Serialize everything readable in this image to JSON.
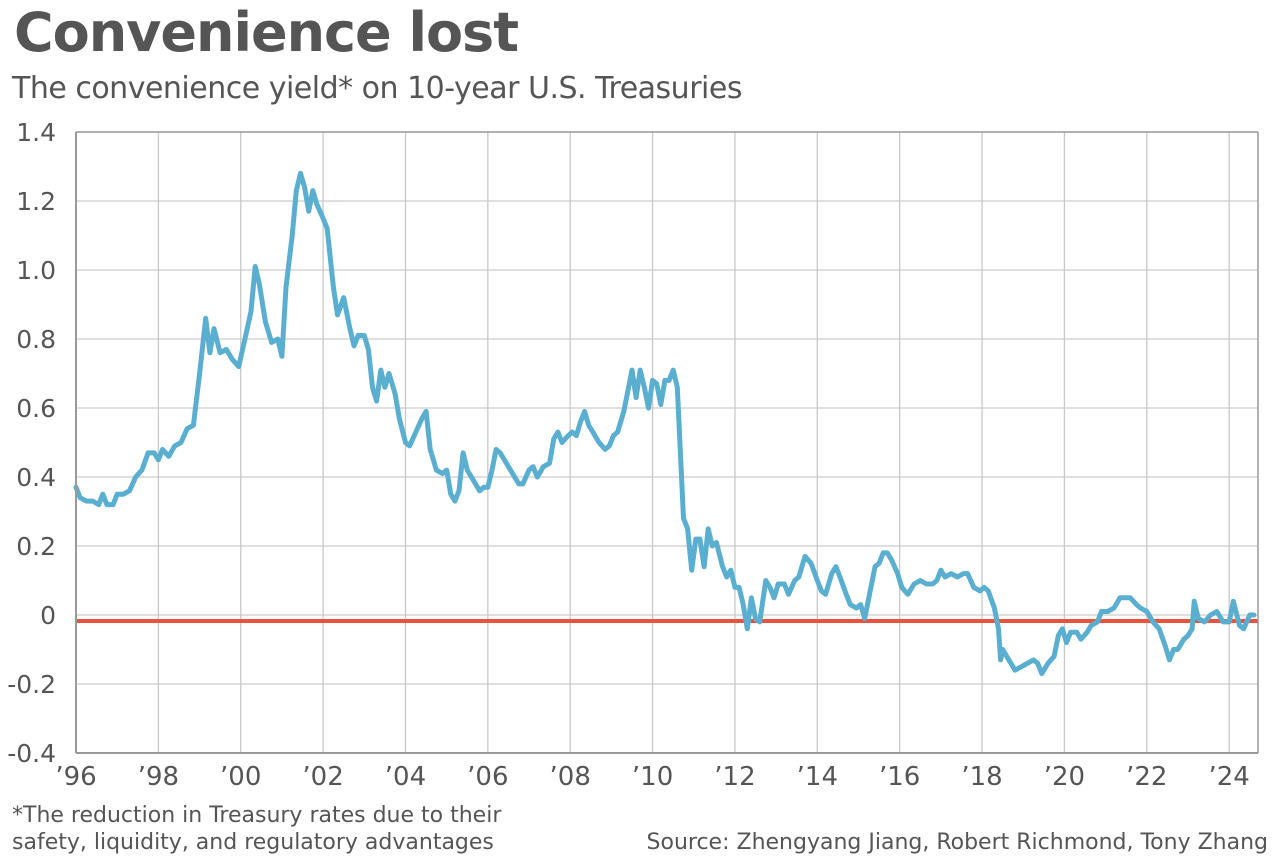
{
  "chart_data": {
    "type": "line",
    "title": "Convenience lost",
    "subtitle": "The convenience yield* on 10-year U.S. Treasuries",
    "xlabel": "",
    "ylabel": "",
    "xlim": [
      1996,
      2024.7
    ],
    "ylim": [
      -0.4,
      1.4
    ],
    "yticks": [
      1.4,
      1.2,
      1.0,
      0.8,
      0.6,
      0.4,
      0.2,
      0,
      -0.2,
      -0.4
    ],
    "ytick_labels": [
      "1.4",
      "1.2",
      "1.0",
      "0.8",
      "0.6",
      "0.4",
      "0.2",
      "0",
      "-0.2",
      "-0.4"
    ],
    "xticks": [
      1996,
      1998,
      2000,
      2002,
      2004,
      2006,
      2008,
      2010,
      2012,
      2014,
      2016,
      2018,
      2020,
      2022,
      2024
    ],
    "xtick_labels": [
      "’96",
      "’98",
      "’00",
      "’02",
      "’04",
      "’06",
      "’08",
      "’10",
      "’12",
      "’14",
      "’16",
      "’18",
      "’20",
      "’22",
      "’24"
    ],
    "grid": true,
    "reference_line": {
      "value": 0,
      "color": "#e8533f"
    },
    "series": [
      {
        "name": "Convenience yield",
        "color": "#5aafd1",
        "points": [
          [
            1996.0,
            0.37
          ],
          [
            1996.1,
            0.34
          ],
          [
            1996.25,
            0.33
          ],
          [
            1996.4,
            0.33
          ],
          [
            1996.55,
            0.32
          ],
          [
            1996.65,
            0.35
          ],
          [
            1996.75,
            0.32
          ],
          [
            1996.9,
            0.32
          ],
          [
            1997.0,
            0.35
          ],
          [
            1997.15,
            0.35
          ],
          [
            1997.3,
            0.36
          ],
          [
            1997.45,
            0.4
          ],
          [
            1997.6,
            0.42
          ],
          [
            1997.75,
            0.47
          ],
          [
            1997.9,
            0.47
          ],
          [
            1998.0,
            0.45
          ],
          [
            1998.1,
            0.48
          ],
          [
            1998.25,
            0.46
          ],
          [
            1998.4,
            0.49
          ],
          [
            1998.55,
            0.5
          ],
          [
            1998.7,
            0.54
          ],
          [
            1998.85,
            0.55
          ],
          [
            1999.0,
            0.7
          ],
          [
            1999.15,
            0.86
          ],
          [
            1999.25,
            0.76
          ],
          [
            1999.35,
            0.83
          ],
          [
            1999.5,
            0.76
          ],
          [
            1999.65,
            0.77
          ],
          [
            1999.8,
            0.74
          ],
          [
            1999.95,
            0.72
          ],
          [
            2000.1,
            0.8
          ],
          [
            2000.25,
            0.88
          ],
          [
            2000.35,
            1.01
          ],
          [
            2000.45,
            0.96
          ],
          [
            2000.6,
            0.85
          ],
          [
            2000.75,
            0.79
          ],
          [
            2000.9,
            0.8
          ],
          [
            2001.0,
            0.75
          ],
          [
            2001.1,
            0.95
          ],
          [
            2001.25,
            1.1
          ],
          [
            2001.35,
            1.23
          ],
          [
            2001.45,
            1.28
          ],
          [
            2001.55,
            1.24
          ],
          [
            2001.65,
            1.17
          ],
          [
            2001.75,
            1.23
          ],
          [
            2001.85,
            1.19
          ],
          [
            2002.0,
            1.15
          ],
          [
            2002.1,
            1.12
          ],
          [
            2002.25,
            0.95
          ],
          [
            2002.35,
            0.87
          ],
          [
            2002.5,
            0.92
          ],
          [
            2002.65,
            0.83
          ],
          [
            2002.75,
            0.78
          ],
          [
            2002.85,
            0.81
          ],
          [
            2003.0,
            0.81
          ],
          [
            2003.1,
            0.77
          ],
          [
            2003.2,
            0.66
          ],
          [
            2003.3,
            0.62
          ],
          [
            2003.4,
            0.71
          ],
          [
            2003.5,
            0.66
          ],
          [
            2003.6,
            0.7
          ],
          [
            2003.75,
            0.64
          ],
          [
            2003.85,
            0.57
          ],
          [
            2004.0,
            0.5
          ],
          [
            2004.1,
            0.49
          ],
          [
            2004.25,
            0.53
          ],
          [
            2004.4,
            0.57
          ],
          [
            2004.5,
            0.59
          ],
          [
            2004.6,
            0.48
          ],
          [
            2004.75,
            0.42
          ],
          [
            2004.9,
            0.41
          ],
          [
            2005.0,
            0.42
          ],
          [
            2005.1,
            0.35
          ],
          [
            2005.2,
            0.33
          ],
          [
            2005.3,
            0.36
          ],
          [
            2005.4,
            0.47
          ],
          [
            2005.5,
            0.42
          ],
          [
            2005.65,
            0.39
          ],
          [
            2005.8,
            0.36
          ],
          [
            2005.9,
            0.37
          ],
          [
            2006.0,
            0.37
          ],
          [
            2006.1,
            0.42
          ],
          [
            2006.2,
            0.48
          ],
          [
            2006.3,
            0.47
          ],
          [
            2006.45,
            0.44
          ],
          [
            2006.6,
            0.41
          ],
          [
            2006.75,
            0.38
          ],
          [
            2006.85,
            0.38
          ],
          [
            2007.0,
            0.42
          ],
          [
            2007.1,
            0.43
          ],
          [
            2007.2,
            0.4
          ],
          [
            2007.35,
            0.43
          ],
          [
            2007.5,
            0.44
          ],
          [
            2007.6,
            0.51
          ],
          [
            2007.7,
            0.53
          ],
          [
            2007.8,
            0.5
          ],
          [
            2007.95,
            0.52
          ],
          [
            2008.05,
            0.53
          ],
          [
            2008.15,
            0.52
          ],
          [
            2008.25,
            0.56
          ],
          [
            2008.35,
            0.59
          ],
          [
            2008.45,
            0.55
          ],
          [
            2008.55,
            0.53
          ],
          [
            2008.7,
            0.5
          ],
          [
            2008.85,
            0.48
          ],
          [
            2008.95,
            0.49
          ],
          [
            2009.05,
            0.52
          ],
          [
            2009.15,
            0.53
          ],
          [
            2009.3,
            0.59
          ],
          [
            2009.4,
            0.65
          ],
          [
            2009.5,
            0.71
          ],
          [
            2009.6,
            0.63
          ],
          [
            2009.7,
            0.71
          ],
          [
            2009.8,
            0.66
          ],
          [
            2009.9,
            0.6
          ],
          [
            2010.0,
            0.68
          ],
          [
            2010.1,
            0.67
          ],
          [
            2010.2,
            0.61
          ],
          [
            2010.3,
            0.68
          ],
          [
            2010.4,
            0.68
          ],
          [
            2010.5,
            0.71
          ],
          [
            2010.6,
            0.66
          ],
          [
            2010.75,
            0.28
          ],
          [
            2010.85,
            0.25
          ],
          [
            2010.95,
            0.13
          ],
          [
            2011.05,
            0.22
          ],
          [
            2011.15,
            0.22
          ],
          [
            2011.25,
            0.14
          ],
          [
            2011.35,
            0.25
          ],
          [
            2011.45,
            0.2
          ],
          [
            2011.55,
            0.21
          ],
          [
            2011.7,
            0.14
          ],
          [
            2011.8,
            0.11
          ],
          [
            2011.9,
            0.13
          ],
          [
            2012.0,
            0.08
          ],
          [
            2012.1,
            0.08
          ],
          [
            2012.2,
            0.03
          ],
          [
            2012.3,
            -0.04
          ],
          [
            2012.4,
            0.05
          ],
          [
            2012.5,
            -0.01
          ],
          [
            2012.6,
            -0.02
          ],
          [
            2012.75,
            0.1
          ],
          [
            2012.85,
            0.08
          ],
          [
            2012.95,
            0.05
          ],
          [
            2013.05,
            0.09
          ],
          [
            2013.2,
            0.09
          ],
          [
            2013.3,
            0.06
          ],
          [
            2013.45,
            0.1
          ],
          [
            2013.55,
            0.11
          ],
          [
            2013.7,
            0.17
          ],
          [
            2013.85,
            0.15
          ],
          [
            2014.0,
            0.1
          ],
          [
            2014.1,
            0.07
          ],
          [
            2014.2,
            0.06
          ],
          [
            2014.35,
            0.12
          ],
          [
            2014.45,
            0.14
          ],
          [
            2014.55,
            0.11
          ],
          [
            2014.7,
            0.06
          ],
          [
            2014.8,
            0.03
          ],
          [
            2014.95,
            0.02
          ],
          [
            2015.05,
            0.03
          ],
          [
            2015.15,
            -0.01
          ],
          [
            2015.3,
            0.08
          ],
          [
            2015.4,
            0.14
          ],
          [
            2015.5,
            0.15
          ],
          [
            2015.6,
            0.18
          ],
          [
            2015.7,
            0.18
          ],
          [
            2015.8,
            0.16
          ],
          [
            2015.95,
            0.12
          ],
          [
            2016.05,
            0.08
          ],
          [
            2016.2,
            0.06
          ],
          [
            2016.35,
            0.09
          ],
          [
            2016.5,
            0.1
          ],
          [
            2016.65,
            0.09
          ],
          [
            2016.8,
            0.09
          ],
          [
            2016.9,
            0.1
          ],
          [
            2017.0,
            0.13
          ],
          [
            2017.1,
            0.11
          ],
          [
            2017.25,
            0.12
          ],
          [
            2017.4,
            0.11
          ],
          [
            2017.55,
            0.12
          ],
          [
            2017.65,
            0.12
          ],
          [
            2017.8,
            0.08
          ],
          [
            2017.95,
            0.07
          ],
          [
            2018.05,
            0.08
          ],
          [
            2018.15,
            0.07
          ],
          [
            2018.3,
            0.02
          ],
          [
            2018.4,
            -0.04
          ],
          [
            2018.45,
            -0.13
          ],
          [
            2018.5,
            -0.1
          ],
          [
            2018.65,
            -0.13
          ],
          [
            2018.8,
            -0.16
          ],
          [
            2018.95,
            -0.15
          ],
          [
            2019.1,
            -0.14
          ],
          [
            2019.25,
            -0.13
          ],
          [
            2019.35,
            -0.14
          ],
          [
            2019.45,
            -0.17
          ],
          [
            2019.6,
            -0.14
          ],
          [
            2019.75,
            -0.12
          ],
          [
            2019.85,
            -0.06
          ],
          [
            2019.95,
            -0.04
          ],
          [
            2020.05,
            -0.08
          ],
          [
            2020.15,
            -0.05
          ],
          [
            2020.3,
            -0.05
          ],
          [
            2020.4,
            -0.07
          ],
          [
            2020.55,
            -0.05
          ],
          [
            2020.65,
            -0.03
          ],
          [
            2020.8,
            -0.02
          ],
          [
            2020.9,
            0.01
          ],
          [
            2021.05,
            0.01
          ],
          [
            2021.2,
            0.02
          ],
          [
            2021.35,
            0.05
          ],
          [
            2021.5,
            0.05
          ],
          [
            2021.6,
            0.05
          ],
          [
            2021.75,
            0.03
          ],
          [
            2021.85,
            0.02
          ],
          [
            2022.0,
            0.01
          ],
          [
            2022.15,
            -0.02
          ],
          [
            2022.3,
            -0.04
          ],
          [
            2022.45,
            -0.09
          ],
          [
            2022.55,
            -0.13
          ],
          [
            2022.65,
            -0.1
          ],
          [
            2022.75,
            -0.1
          ],
          [
            2022.9,
            -0.07
          ],
          [
            2023.0,
            -0.06
          ],
          [
            2023.1,
            -0.04
          ],
          [
            2023.15,
            0.04
          ],
          [
            2023.25,
            -0.01
          ],
          [
            2023.4,
            -0.02
          ],
          [
            2023.55,
            0.0
          ],
          [
            2023.7,
            0.01
          ],
          [
            2023.85,
            -0.02
          ],
          [
            2024.0,
            -0.02
          ],
          [
            2024.1,
            0.04
          ],
          [
            2024.25,
            -0.03
          ],
          [
            2024.35,
            -0.04
          ],
          [
            2024.5,
            0.0
          ],
          [
            2024.6,
            0.0
          ]
        ]
      }
    ]
  },
  "header": {
    "title": "Convenience lost",
    "subtitle": "The convenience yield* on 10-year U.S. Treasuries"
  },
  "footer": {
    "footnote_line1": "*The reduction in Treasury rates due to their",
    "footnote_line2": "safety, liquidity, and regulatory advantages",
    "source": "Source: Zhengyang Jiang, Robert Richmond, Tony Zhang"
  }
}
